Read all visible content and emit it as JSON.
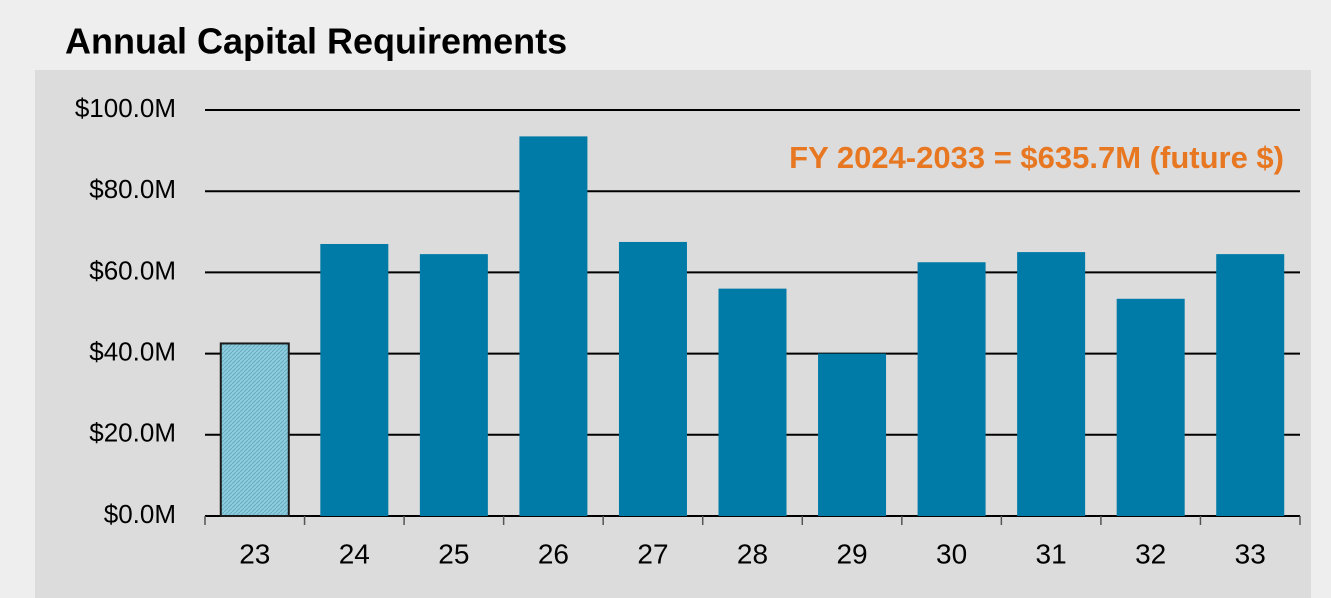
{
  "chart_data": {
    "type": "bar",
    "title": "Annual Capital Requirements",
    "annotation": "FY 2024-2033 = $635.7M (future $)",
    "categories": [
      "23",
      "24",
      "25",
      "26",
      "27",
      "28",
      "29",
      "30",
      "31",
      "32",
      "33"
    ],
    "values": [
      42.5,
      67,
      64.5,
      93.5,
      67.5,
      56,
      40,
      62.5,
      65,
      53.5,
      64.5
    ],
    "colors": [
      "#8ecbdc",
      "#007ba7",
      "#007ba7",
      "#007ba7",
      "#007ba7",
      "#007ba7",
      "#007ba7",
      "#007ba7",
      "#007ba7",
      "#007ba7",
      "#007ba7"
    ],
    "annotation_color": "#e87722",
    "ylim": [
      0,
      100
    ],
    "yticks": [
      {
        "value": 0,
        "label": "$0.0M"
      },
      {
        "value": 20,
        "label": "$20.0M"
      },
      {
        "value": 40,
        "label": "$40.0M"
      },
      {
        "value": 60,
        "label": "$60.0M"
      },
      {
        "value": 80,
        "label": "$80.0M"
      },
      {
        "value": 100,
        "label": "$100.0M"
      }
    ],
    "grid": true
  }
}
